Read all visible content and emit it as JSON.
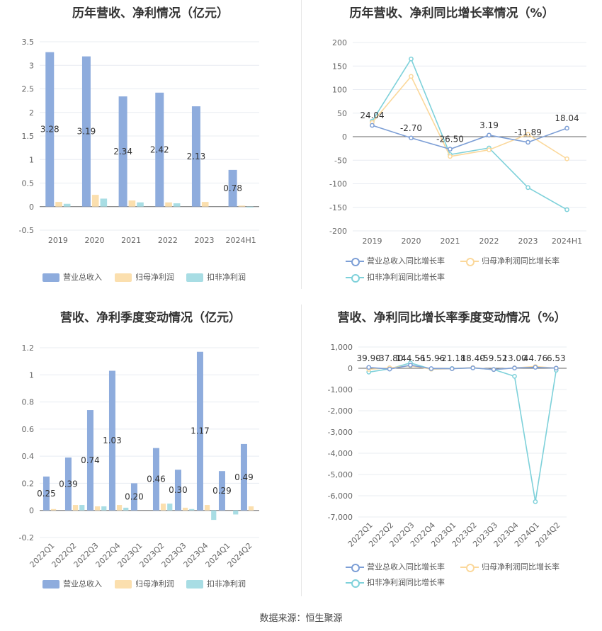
{
  "source": "数据来源：恒生聚源",
  "chart_data": [
    {
      "type": "bar",
      "title": "历年营收、净利情况（亿元）",
      "categories": [
        "2019",
        "2020",
        "2021",
        "2022",
        "2023",
        "2024H1"
      ],
      "ylim": [
        -0.5,
        3.5
      ],
      "yticks": [
        "3.5",
        "3",
        "2.5",
        "2",
        "1.5",
        "1",
        "0.5",
        "0",
        "-0.5"
      ],
      "series": [
        {
          "name": "营业总收入",
          "color": "#8eacdd",
          "values": [
            3.28,
            3.19,
            2.34,
            2.42,
            2.13,
            0.78
          ],
          "labels": [
            "3.28",
            "3.19",
            "2.34",
            "2.42",
            "2.13",
            "0.78"
          ]
        },
        {
          "name": "归母净利润",
          "color": "#fbdfae",
          "values": [
            0.1,
            0.25,
            0.13,
            0.09,
            0.1,
            0.02
          ]
        },
        {
          "name": "扣非净利润",
          "color": "#a8dde4",
          "values": [
            0.06,
            0.17,
            0.09,
            0.07,
            0.0,
            -0.02
          ]
        }
      ],
      "grid": true,
      "legend": "bottom"
    },
    {
      "type": "line",
      "title": "历年营收、净利同比增长率情况（%）",
      "categories": [
        "2019",
        "2020",
        "2021",
        "2022",
        "2023",
        "2024H1"
      ],
      "ylim": [
        -200,
        200
      ],
      "yticks": [
        "200",
        "150",
        "100",
        "50",
        "0",
        "-50",
        "-100",
        "-150",
        "-200"
      ],
      "series": [
        {
          "name": "营业总收入同比增长率",
          "color": "#7d9fd6",
          "values": [
            24.04,
            -2.7,
            -26.5,
            3.19,
            -11.89,
            18.04
          ],
          "labels": [
            "24.04",
            "-2.70",
            "-26.50",
            "3.19",
            "-11.89",
            "18.04"
          ]
        },
        {
          "name": "归母净利润同比增长率",
          "color": "#fbd89b",
          "values": [
            30,
            128,
            -42,
            -28,
            5,
            -47
          ]
        },
        {
          "name": "扣非净利润同比增长率",
          "color": "#7ed1da",
          "values": [
            33,
            165,
            -38,
            -24,
            -108,
            -155
          ]
        }
      ],
      "grid": true,
      "legend": "bottom"
    },
    {
      "type": "bar",
      "title": "营收、净利季度变动情况（亿元）",
      "categories": [
        "2022Q1",
        "2022Q2",
        "2022Q3",
        "2022Q4",
        "2023Q1",
        "2023Q2",
        "2023Q3",
        "2023Q4",
        "2024Q1",
        "2024Q2"
      ],
      "ylim": [
        -0.2,
        1.2
      ],
      "yticks": [
        "1.2",
        "1",
        "0.8",
        "0.6",
        "0.4",
        "0.2",
        "0",
        "-0.2"
      ],
      "series": [
        {
          "name": "营业总收入",
          "color": "#8eacdd",
          "values": [
            0.25,
            0.39,
            0.74,
            1.03,
            0.2,
            0.46,
            0.3,
            1.17,
            0.29,
            0.49
          ],
          "labels": [
            "0.25",
            "0.39",
            "0.74",
            "1.03",
            "0.20",
            "0.46",
            "0.30",
            "1.17",
            "0.29",
            "0.49"
          ]
        },
        {
          "name": "归母净利润",
          "color": "#fbdfae",
          "values": [
            0.01,
            0.04,
            0.03,
            0.04,
            0.0,
            0.05,
            0.02,
            0.04,
            0.0,
            0.03
          ]
        },
        {
          "name": "扣非净利润",
          "color": "#a8dde4",
          "values": [
            0.0,
            0.04,
            0.03,
            0.02,
            0.0,
            0.05,
            0.01,
            -0.07,
            -0.03,
            0.0
          ]
        }
      ],
      "grid": true,
      "legend": "bottom"
    },
    {
      "type": "line",
      "title": "营收、净利同比增长率季度变动情况（%）",
      "categories": [
        "2022Q1",
        "2022Q2",
        "2022Q3",
        "2022Q4",
        "2023Q1",
        "2023Q2",
        "2023Q3",
        "2023Q4",
        "2024Q1",
        "2024Q2"
      ],
      "ylim": [
        -7000,
        1000
      ],
      "yticks": [
        "1,000",
        "0",
        "-1,000",
        "-2,000",
        "-3,000",
        "-4,000",
        "-5,000",
        "-6,000",
        "-7,000"
      ],
      "series": [
        {
          "name": "营业总收入同比增长率",
          "color": "#7d9fd6",
          "values": [
            39.9,
            -37.8,
            144.56,
            -15.96,
            -21.18,
            18.4,
            -59.52,
            13.0,
            44.76,
            6.53
          ],
          "labels": [
            "39.90",
            "-37.80",
            "144.56",
            "-15.96",
            "-21.18",
            "18.40",
            "-59.52",
            "13.00",
            "44.76",
            "6.53"
          ]
        },
        {
          "name": "归母净利润同比增长率",
          "color": "#fbd89b",
          "values": [
            -50,
            20,
            120,
            -40,
            -20,
            30,
            -60,
            20,
            80,
            10
          ]
        },
        {
          "name": "扣非净利润同比增长率",
          "color": "#7ed1da",
          "values": [
            -180,
            -30,
            250,
            -40,
            -10,
            20,
            -60,
            -380,
            -6280,
            -90
          ]
        }
      ],
      "grid": true,
      "legend": "bottom"
    }
  ]
}
